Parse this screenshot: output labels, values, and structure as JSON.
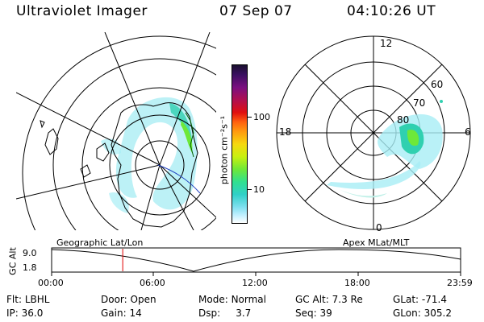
{
  "header": {
    "instrument": "Ultraviolet Imager",
    "date": "07 Sep 07",
    "time": "04:10:26 UT"
  },
  "colorbar": {
    "unit_label": "photon cm⁻²s⁻¹",
    "ticks": [
      "100",
      "10"
    ],
    "colors": [
      "#1a1030",
      "#3a1060",
      "#7a1080",
      "#b01050",
      "#e01010",
      "#ff6010",
      "#ff9a10",
      "#f6d810",
      "#c8f010",
      "#6ee838",
      "#30e090",
      "#30d0c8",
      "#80e0f0",
      "#c0f0ff",
      "#ffffff"
    ]
  },
  "polar_plot": {
    "mlt_labels": [
      "12",
      "18",
      "6",
      "0"
    ],
    "lat_labels": [
      "60",
      "70",
      "80"
    ]
  },
  "timeline": {
    "left_label": "Geographic Lat/Lon",
    "right_label": "Apex MLat/MLT",
    "y_axis_title": "GC Alt",
    "y_ticks": [
      "9.0",
      "1.8"
    ],
    "x_ticks": [
      "00:00",
      "06:00",
      "12:00",
      "18:00",
      "23:59"
    ],
    "marker_color": "#e00000",
    "marker_time_hours": 4.17
  },
  "status": {
    "row1": [
      {
        "label": "Flt:",
        "value": "LBHL"
      },
      {
        "label": "Door:",
        "value": "Open"
      },
      {
        "label": "Mode:",
        "value": "Normal"
      },
      {
        "label": "GC Alt:",
        "value": "7.3 Re"
      },
      {
        "label": "GLat:",
        "value": "-71.4"
      }
    ],
    "row2": [
      {
        "label": "IP:",
        "value": "36.0"
      },
      {
        "label": "Gain:",
        "value": "14"
      },
      {
        "label": "Dsp:",
        "value": "3.7"
      },
      {
        "label": "Seq:",
        "value": "39"
      },
      {
        "label": "GLon:",
        "value": "305.2"
      }
    ]
  }
}
